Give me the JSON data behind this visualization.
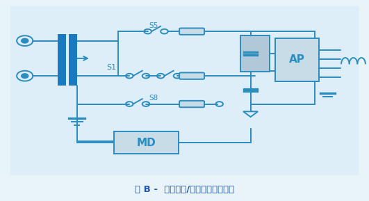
{
  "bg_outer": "#e8f4f8",
  "bg_circuit": "#deeef8",
  "cc": "#2b8cbe",
  "cc_dark": "#1a6fa0",
  "bar_fill": "#1a7abf",
  "box_light": "#c8dce8",
  "box_gray": "#b0c8d8",
  "lw": 1.4,
  "caption": "图 B -  接触电流/外壳泄漏测试电路",
  "caption_color": "#2255aa",
  "caption_fs": 9.5,
  "s1": "S1",
  "s5": "S5",
  "s8": "S8",
  "md": "MD",
  "ap": "AP"
}
